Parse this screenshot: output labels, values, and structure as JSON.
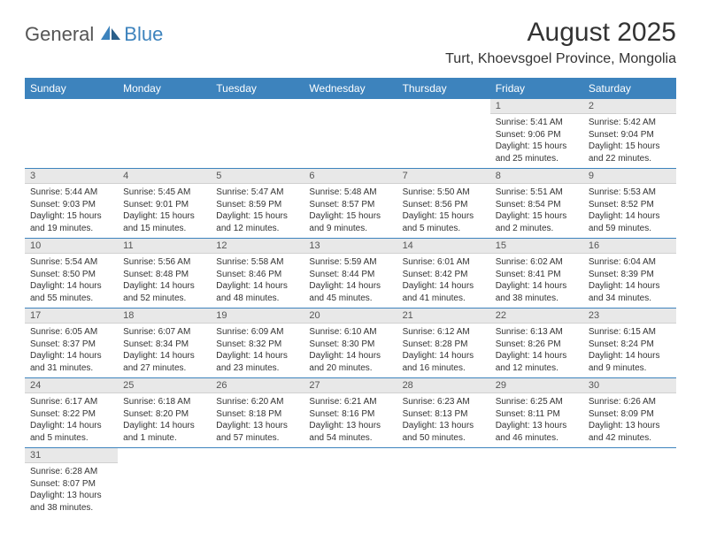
{
  "logo": {
    "text1": "General",
    "text2": "Blue",
    "accent": "#3d83bd"
  },
  "title": "August 2025",
  "location": "Turt, Khoevsgoel Province, Mongolia",
  "colors": {
    "header_bg": "#3d83bd",
    "header_text": "#ffffff",
    "daynum_bg": "#e8e8e8",
    "text": "#333333",
    "row_border": "#3d83bd"
  },
  "dow": [
    "Sunday",
    "Monday",
    "Tuesday",
    "Wednesday",
    "Thursday",
    "Friday",
    "Saturday"
  ],
  "weeks": [
    [
      {
        "n": "",
        "sr": "",
        "ss": "",
        "dl": ""
      },
      {
        "n": "",
        "sr": "",
        "ss": "",
        "dl": ""
      },
      {
        "n": "",
        "sr": "",
        "ss": "",
        "dl": ""
      },
      {
        "n": "",
        "sr": "",
        "ss": "",
        "dl": ""
      },
      {
        "n": "",
        "sr": "",
        "ss": "",
        "dl": ""
      },
      {
        "n": "1",
        "sr": "Sunrise: 5:41 AM",
        "ss": "Sunset: 9:06 PM",
        "dl": "Daylight: 15 hours and 25 minutes."
      },
      {
        "n": "2",
        "sr": "Sunrise: 5:42 AM",
        "ss": "Sunset: 9:04 PM",
        "dl": "Daylight: 15 hours and 22 minutes."
      }
    ],
    [
      {
        "n": "3",
        "sr": "Sunrise: 5:44 AM",
        "ss": "Sunset: 9:03 PM",
        "dl": "Daylight: 15 hours and 19 minutes."
      },
      {
        "n": "4",
        "sr": "Sunrise: 5:45 AM",
        "ss": "Sunset: 9:01 PM",
        "dl": "Daylight: 15 hours and 15 minutes."
      },
      {
        "n": "5",
        "sr": "Sunrise: 5:47 AM",
        "ss": "Sunset: 8:59 PM",
        "dl": "Daylight: 15 hours and 12 minutes."
      },
      {
        "n": "6",
        "sr": "Sunrise: 5:48 AM",
        "ss": "Sunset: 8:57 PM",
        "dl": "Daylight: 15 hours and 9 minutes."
      },
      {
        "n": "7",
        "sr": "Sunrise: 5:50 AM",
        "ss": "Sunset: 8:56 PM",
        "dl": "Daylight: 15 hours and 5 minutes."
      },
      {
        "n": "8",
        "sr": "Sunrise: 5:51 AM",
        "ss": "Sunset: 8:54 PM",
        "dl": "Daylight: 15 hours and 2 minutes."
      },
      {
        "n": "9",
        "sr": "Sunrise: 5:53 AM",
        "ss": "Sunset: 8:52 PM",
        "dl": "Daylight: 14 hours and 59 minutes."
      }
    ],
    [
      {
        "n": "10",
        "sr": "Sunrise: 5:54 AM",
        "ss": "Sunset: 8:50 PM",
        "dl": "Daylight: 14 hours and 55 minutes."
      },
      {
        "n": "11",
        "sr": "Sunrise: 5:56 AM",
        "ss": "Sunset: 8:48 PM",
        "dl": "Daylight: 14 hours and 52 minutes."
      },
      {
        "n": "12",
        "sr": "Sunrise: 5:58 AM",
        "ss": "Sunset: 8:46 PM",
        "dl": "Daylight: 14 hours and 48 minutes."
      },
      {
        "n": "13",
        "sr": "Sunrise: 5:59 AM",
        "ss": "Sunset: 8:44 PM",
        "dl": "Daylight: 14 hours and 45 minutes."
      },
      {
        "n": "14",
        "sr": "Sunrise: 6:01 AM",
        "ss": "Sunset: 8:42 PM",
        "dl": "Daylight: 14 hours and 41 minutes."
      },
      {
        "n": "15",
        "sr": "Sunrise: 6:02 AM",
        "ss": "Sunset: 8:41 PM",
        "dl": "Daylight: 14 hours and 38 minutes."
      },
      {
        "n": "16",
        "sr": "Sunrise: 6:04 AM",
        "ss": "Sunset: 8:39 PM",
        "dl": "Daylight: 14 hours and 34 minutes."
      }
    ],
    [
      {
        "n": "17",
        "sr": "Sunrise: 6:05 AM",
        "ss": "Sunset: 8:37 PM",
        "dl": "Daylight: 14 hours and 31 minutes."
      },
      {
        "n": "18",
        "sr": "Sunrise: 6:07 AM",
        "ss": "Sunset: 8:34 PM",
        "dl": "Daylight: 14 hours and 27 minutes."
      },
      {
        "n": "19",
        "sr": "Sunrise: 6:09 AM",
        "ss": "Sunset: 8:32 PM",
        "dl": "Daylight: 14 hours and 23 minutes."
      },
      {
        "n": "20",
        "sr": "Sunrise: 6:10 AM",
        "ss": "Sunset: 8:30 PM",
        "dl": "Daylight: 14 hours and 20 minutes."
      },
      {
        "n": "21",
        "sr": "Sunrise: 6:12 AM",
        "ss": "Sunset: 8:28 PM",
        "dl": "Daylight: 14 hours and 16 minutes."
      },
      {
        "n": "22",
        "sr": "Sunrise: 6:13 AM",
        "ss": "Sunset: 8:26 PM",
        "dl": "Daylight: 14 hours and 12 minutes."
      },
      {
        "n": "23",
        "sr": "Sunrise: 6:15 AM",
        "ss": "Sunset: 8:24 PM",
        "dl": "Daylight: 14 hours and 9 minutes."
      }
    ],
    [
      {
        "n": "24",
        "sr": "Sunrise: 6:17 AM",
        "ss": "Sunset: 8:22 PM",
        "dl": "Daylight: 14 hours and 5 minutes."
      },
      {
        "n": "25",
        "sr": "Sunrise: 6:18 AM",
        "ss": "Sunset: 8:20 PM",
        "dl": "Daylight: 14 hours and 1 minute."
      },
      {
        "n": "26",
        "sr": "Sunrise: 6:20 AM",
        "ss": "Sunset: 8:18 PM",
        "dl": "Daylight: 13 hours and 57 minutes."
      },
      {
        "n": "27",
        "sr": "Sunrise: 6:21 AM",
        "ss": "Sunset: 8:16 PM",
        "dl": "Daylight: 13 hours and 54 minutes."
      },
      {
        "n": "28",
        "sr": "Sunrise: 6:23 AM",
        "ss": "Sunset: 8:13 PM",
        "dl": "Daylight: 13 hours and 50 minutes."
      },
      {
        "n": "29",
        "sr": "Sunrise: 6:25 AM",
        "ss": "Sunset: 8:11 PM",
        "dl": "Daylight: 13 hours and 46 minutes."
      },
      {
        "n": "30",
        "sr": "Sunrise: 6:26 AM",
        "ss": "Sunset: 8:09 PM",
        "dl": "Daylight: 13 hours and 42 minutes."
      }
    ],
    [
      {
        "n": "31",
        "sr": "Sunrise: 6:28 AM",
        "ss": "Sunset: 8:07 PM",
        "dl": "Daylight: 13 hours and 38 minutes."
      },
      {
        "n": "",
        "sr": "",
        "ss": "",
        "dl": ""
      },
      {
        "n": "",
        "sr": "",
        "ss": "",
        "dl": ""
      },
      {
        "n": "",
        "sr": "",
        "ss": "",
        "dl": ""
      },
      {
        "n": "",
        "sr": "",
        "ss": "",
        "dl": ""
      },
      {
        "n": "",
        "sr": "",
        "ss": "",
        "dl": ""
      },
      {
        "n": "",
        "sr": "",
        "ss": "",
        "dl": ""
      }
    ]
  ]
}
